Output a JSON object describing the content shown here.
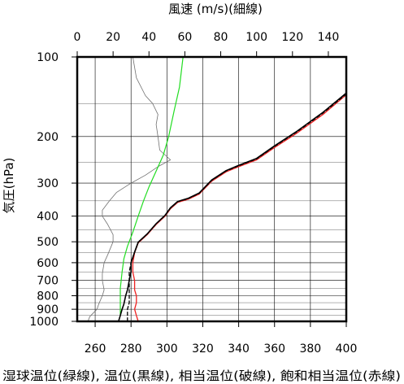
{
  "chart_data": {
    "type": "line",
    "top_axis": {
      "label": "風速 (m/s)(細線)",
      "range": [
        0,
        150
      ],
      "ticks": [
        0,
        20,
        40,
        60,
        80,
        100,
        120,
        140
      ]
    },
    "bottom_axis": {
      "label": "湿球温位(緑線), 温位(黒線), 相当温位(破線), 飽和相当温位(赤線)",
      "range": [
        250,
        400
      ],
      "ticks": [
        260,
        280,
        300,
        320,
        340,
        360,
        380,
        400
      ]
    },
    "y_axis": {
      "label": "気圧(hPa)",
      "scale": "log",
      "reversed": true,
      "range": [
        1000,
        100
      ],
      "ticks": [
        100,
        200,
        300,
        400,
        500,
        600,
        700,
        800,
        900,
        1000
      ],
      "minor_lines": [
        150,
        250,
        350,
        450,
        550,
        650,
        750,
        850,
        950
      ]
    },
    "grid": true,
    "series": [
      {
        "name": "風速",
        "axis": "top",
        "color": "#707070",
        "dash": "",
        "width": 0.8,
        "points": [
          [
            31,
            100
          ],
          [
            33,
            120
          ],
          [
            38,
            140
          ],
          [
            42,
            150
          ],
          [
            45,
            165
          ],
          [
            44,
            180
          ],
          [
            45,
            200
          ],
          [
            46,
            225
          ],
          [
            52,
            245
          ],
          [
            45,
            260
          ],
          [
            38,
            280
          ],
          [
            30,
            300
          ],
          [
            22,
            325
          ],
          [
            18,
            350
          ],
          [
            14,
            380
          ],
          [
            14,
            400
          ],
          [
            17,
            430
          ],
          [
            20,
            470
          ],
          [
            20,
            500
          ],
          [
            17,
            560
          ],
          [
            15,
            600
          ],
          [
            14,
            660
          ],
          [
            14,
            700
          ],
          [
            15,
            760
          ],
          [
            14,
            800
          ],
          [
            12,
            860
          ],
          [
            11,
            900
          ],
          [
            7,
            960
          ],
          [
            6,
            1000
          ]
        ]
      },
      {
        "name": "湿球温位",
        "axis": "bottom",
        "color": "#22dd22",
        "dash": "",
        "width": 1.2,
        "points": [
          [
            309,
            100
          ],
          [
            307,
            130
          ],
          [
            304,
            160
          ],
          [
            301,
            200
          ],
          [
            298,
            235
          ],
          [
            294,
            270
          ],
          [
            290,
            310
          ],
          [
            287,
            350
          ],
          [
            284,
            400
          ],
          [
            281,
            460
          ],
          [
            278,
            520
          ],
          [
            276,
            580
          ],
          [
            275,
            650
          ],
          [
            274,
            750
          ],
          [
            274,
            850
          ],
          [
            274,
            950
          ]
        ]
      },
      {
        "name": "飽和相当温位",
        "axis": "bottom",
        "color": "#ee2222",
        "dash": "",
        "width": 1.3,
        "points": [
          [
            400,
            139
          ],
          [
            387,
            165
          ],
          [
            372,
            195
          ],
          [
            360,
            220
          ],
          [
            350,
            245
          ],
          [
            340,
            260
          ],
          [
            333,
            272
          ],
          [
            325,
            295
          ],
          [
            318,
            330
          ],
          [
            312,
            345
          ],
          [
            306,
            355
          ],
          [
            302,
            375
          ],
          [
            299,
            400
          ],
          [
            294,
            430
          ],
          [
            289,
            470
          ],
          [
            284,
            505
          ],
          [
            282,
            550
          ],
          [
            281,
            600
          ],
          [
            281,
            650
          ],
          [
            282,
            700
          ],
          [
            282,
            760
          ],
          [
            283,
            800
          ],
          [
            283,
            850
          ],
          [
            282,
            900
          ],
          [
            283,
            950
          ],
          [
            284,
            1000
          ]
        ]
      },
      {
        "name": "相当温位",
        "axis": "bottom",
        "color": "#000000",
        "dash": "4,3",
        "width": 1.3,
        "points": [
          [
            400,
            138
          ],
          [
            387,
            163
          ],
          [
            372,
            193
          ],
          [
            360,
            218
          ],
          [
            350,
            243
          ],
          [
            340,
            258
          ],
          [
            333,
            270
          ],
          [
            325,
            293
          ],
          [
            318,
            328
          ],
          [
            312,
            343
          ],
          [
            306,
            353
          ],
          [
            302,
            373
          ],
          [
            299,
            398
          ],
          [
            294,
            428
          ],
          [
            289,
            468
          ],
          [
            284,
            503
          ],
          [
            282,
            548
          ],
          [
            280,
            600
          ],
          [
            279,
            650
          ],
          [
            279,
            700
          ],
          [
            279,
            760
          ],
          [
            279,
            800
          ],
          [
            279,
            850
          ],
          [
            278,
            900
          ],
          [
            278,
            950
          ],
          [
            278,
            1000
          ]
        ]
      },
      {
        "name": "温位",
        "axis": "bottom",
        "color": "#000000",
        "dash": "",
        "width": 1.6,
        "points": [
          [
            400,
            137
          ],
          [
            387,
            162
          ],
          [
            372,
            192
          ],
          [
            360,
            217
          ],
          [
            350,
            242
          ],
          [
            340,
            257
          ],
          [
            333,
            269
          ],
          [
            325,
            292
          ],
          [
            318,
            327
          ],
          [
            312,
            342
          ],
          [
            306,
            352
          ],
          [
            302,
            372
          ],
          [
            299,
            397
          ],
          [
            294,
            427
          ],
          [
            289,
            467
          ],
          [
            284,
            502
          ],
          [
            282,
            547
          ],
          [
            280,
            600
          ],
          [
            280,
            650
          ],
          [
            279,
            700
          ],
          [
            278,
            760
          ],
          [
            277,
            800
          ],
          [
            276,
            860
          ],
          [
            275,
            900
          ],
          [
            274,
            950
          ],
          [
            273,
            1000
          ]
        ]
      }
    ]
  }
}
